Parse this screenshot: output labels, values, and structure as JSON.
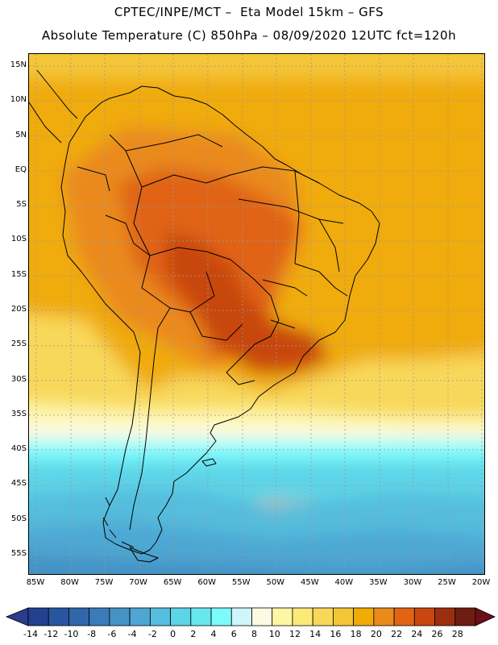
{
  "header": {
    "line1": "CPTEC/INPE/MCT –  Eta Model 15km – GFS",
    "line2": "Absolute Temperature (C) 850hPa – 08/09/2020 12UTC fct=120h"
  },
  "map": {
    "lat_labels": [
      "15N",
      "10N",
      "5N",
      "EQ",
      "5S",
      "10S",
      "15S",
      "20S",
      "25S",
      "30S",
      "35S",
      "40S",
      "45S",
      "50S",
      "55S"
    ],
    "lon_labels": [
      "85W",
      "80W",
      "75W",
      "70W",
      "65W",
      "60W",
      "55W",
      "50W",
      "45W",
      "40W",
      "35W",
      "30W",
      "25W",
      "20W"
    ],
    "lat_values": [
      15,
      10,
      5,
      0,
      -5,
      -10,
      -15,
      -20,
      -25,
      -30,
      -35,
      -40,
      -45,
      -50,
      -55
    ],
    "lon_values": [
      -85,
      -80,
      -75,
      -70,
      -65,
      -60,
      -55,
      -50,
      -45,
      -40,
      -35,
      -30,
      -25,
      -20
    ]
  },
  "colorbar": {
    "labels": [
      "-14",
      "-12",
      "-10",
      "-8",
      "-6",
      "-4",
      "-2",
      "0",
      "2",
      "4",
      "6",
      "8",
      "10",
      "12",
      "14",
      "16",
      "18",
      "20",
      "22",
      "24",
      "26",
      "28"
    ],
    "colors": [
      "#22418f",
      "#28559f",
      "#3066aa",
      "#3a7bb9",
      "#4592c5",
      "#4ea7d3",
      "#55bddd",
      "#5dd4e7",
      "#66e8ee",
      "#7cfbfd",
      "#cdf5fb",
      "#fdf9e3",
      "#fdf6a4",
      "#fbe978",
      "#f8d85a",
      "#f4c637",
      "#f0ab07",
      "#ea8a1d",
      "#e06414",
      "#c8470e",
      "#9c2e10",
      "#6e1d12"
    ],
    "under_color": "#2c3b8a",
    "over_color": "#6b0f19"
  }
}
